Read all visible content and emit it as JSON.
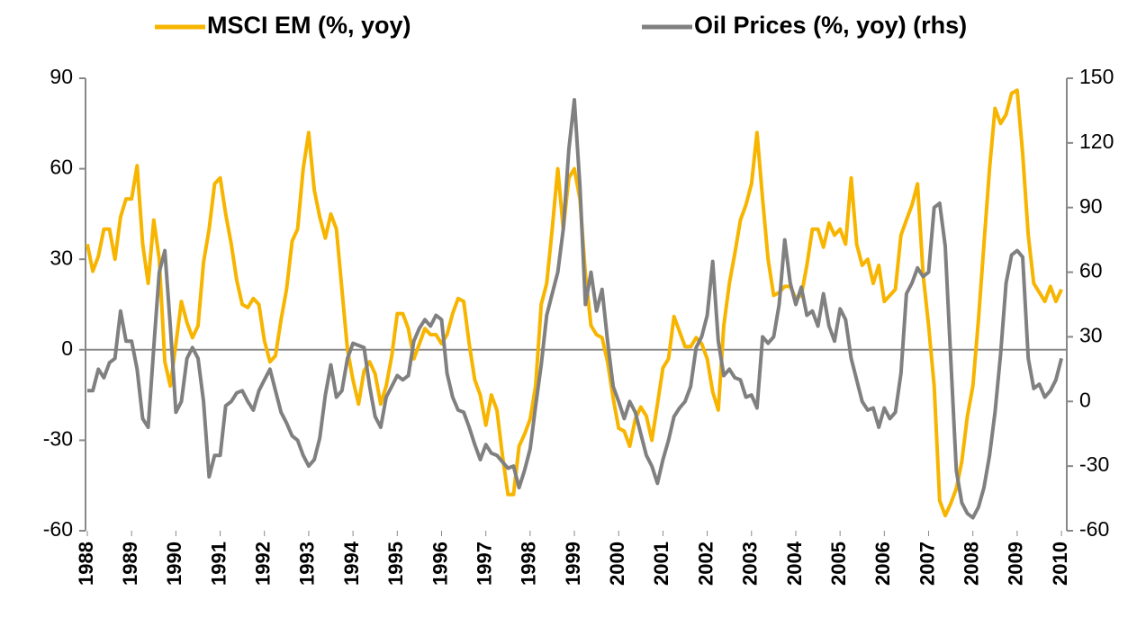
{
  "chart_data": {
    "type": "line",
    "x": [
      1988,
      1988.125,
      1988.25,
      1988.375,
      1988.5,
      1988.625,
      1988.75,
      1988.875,
      1989,
      1989.125,
      1989.25,
      1989.375,
      1989.5,
      1989.625,
      1989.75,
      1989.875,
      1990,
      1990.125,
      1990.25,
      1990.375,
      1990.5,
      1990.625,
      1990.75,
      1990.875,
      1991,
      1991.125,
      1991.25,
      1991.375,
      1991.5,
      1991.625,
      1991.75,
      1991.875,
      1992,
      1992.125,
      1992.25,
      1992.375,
      1992.5,
      1992.625,
      1992.75,
      1992.875,
      1993,
      1993.125,
      1993.25,
      1993.375,
      1993.5,
      1993.625,
      1993.75,
      1993.875,
      1994,
      1994.125,
      1994.25,
      1994.375,
      1994.5,
      1994.625,
      1994.75,
      1994.875,
      1995,
      1995.125,
      1995.25,
      1995.375,
      1995.5,
      1995.625,
      1995.75,
      1995.875,
      1996,
      1996.125,
      1996.25,
      1996.375,
      1996.5,
      1996.625,
      1996.75,
      1996.875,
      1997,
      1997.125,
      1997.25,
      1997.375,
      1997.5,
      1997.625,
      1997.75,
      1997.875,
      1998,
      1998.125,
      1998.25,
      1998.375,
      1998.5,
      1998.625,
      1998.75,
      1998.875,
      1999,
      1999.125,
      1999.25,
      1999.375,
      1999.5,
      1999.625,
      1999.75,
      1999.875,
      2000,
      2000.125,
      2000.25,
      2000.375,
      2000.5,
      2000.625,
      2000.75,
      2000.875,
      2001,
      2001.125,
      2001.25,
      2001.375,
      2001.5,
      2001.625,
      2001.75,
      2001.875,
      2002,
      2002.125,
      2002.25,
      2002.375,
      2002.5,
      2002.625,
      2002.75,
      2002.875,
      2003,
      2003.125,
      2003.25,
      2003.375,
      2003.5,
      2003.625,
      2003.75,
      2003.875,
      2004,
      2004.125,
      2004.25,
      2004.375,
      2004.5,
      2004.625,
      2004.75,
      2004.875,
      2005,
      2005.125,
      2005.25,
      2005.375,
      2005.5,
      2005.625,
      2005.75,
      2005.875,
      2006,
      2006.125,
      2006.25,
      2006.375,
      2006.5,
      2006.625,
      2006.75,
      2006.875,
      2007,
      2007.125,
      2007.25,
      2007.375,
      2007.5,
      2007.625,
      2007.75,
      2007.875,
      2008,
      2008.125,
      2008.25,
      2008.375,
      2008.5,
      2008.625,
      2008.75,
      2008.875,
      2009,
      2009.125,
      2009.25,
      2009.375,
      2009.5,
      2009.625,
      2009.75,
      2009.875,
      2010
    ],
    "series": [
      {
        "name": "MSCI EM (%, yoy)",
        "color": "#f7b500",
        "values": [
          35,
          26,
          31,
          40,
          40,
          30,
          44,
          50,
          50,
          61,
          35,
          22,
          43,
          30,
          -4,
          -12,
          2,
          16,
          9,
          4,
          8,
          29,
          40,
          55,
          57,
          45,
          35,
          23,
          15,
          14,
          17,
          15,
          3,
          -4,
          -2,
          10,
          20,
          36,
          40,
          60,
          72,
          53,
          44,
          37,
          45,
          40,
          20,
          0,
          -10,
          -18,
          -7,
          -4,
          -8,
          -18,
          -12,
          -2,
          12,
          12,
          7,
          -3,
          2,
          7,
          5,
          5,
          2,
          5,
          12,
          17,
          16,
          2,
          -10,
          -15,
          -25,
          -15,
          -20,
          -35,
          -48,
          -48,
          -32,
          -28,
          -23,
          -12,
          15,
          22,
          40,
          60,
          40,
          57,
          60,
          50,
          25,
          8,
          5,
          4,
          -4,
          -16,
          -26,
          -27,
          -32,
          -23,
          -19,
          -22,
          -30,
          -18,
          -6,
          -3,
          11,
          6,
          1,
          1,
          4,
          2,
          -3,
          -14,
          -20,
          8,
          22,
          32,
          43,
          48,
          55,
          72,
          50,
          30,
          18,
          19,
          21,
          21,
          17,
          18,
          28,
          40,
          40,
          34,
          42,
          38,
          40,
          35,
          57,
          35,
          28,
          30,
          22,
          28,
          16,
          18,
          20,
          38,
          43,
          48,
          55,
          25,
          8,
          -12,
          -50,
          -55,
          -51,
          -46,
          -37,
          -22,
          -12,
          10,
          35,
          60,
          80,
          75,
          78,
          85,
          86,
          65,
          38,
          22,
          19,
          16,
          21,
          16,
          20
        ]
      },
      {
        "name": "Oil Prices (%, yoy) (rhs)",
        "color": "#808080",
        "axis": "y2",
        "values": [
          5,
          5,
          15,
          11,
          18,
          20,
          42,
          28,
          28,
          15,
          -8,
          -12,
          25,
          60,
          70,
          35,
          -5,
          0,
          20,
          25,
          20,
          0,
          -35,
          -25,
          -25,
          -2,
          0,
          4,
          5,
          0,
          -4,
          5,
          10,
          15,
          5,
          -5,
          -10,
          -16,
          -18,
          -25,
          -30,
          -27,
          -17,
          3,
          17,
          2,
          5,
          20,
          27,
          26,
          25,
          7,
          -7,
          -12,
          2,
          7,
          12,
          10,
          12,
          28,
          34,
          38,
          35,
          40,
          38,
          13,
          2,
          -4,
          -5,
          -12,
          -20,
          -27,
          -20,
          -24,
          -25,
          -28,
          -31,
          -30,
          -40,
          -32,
          -22,
          -2,
          17,
          40,
          50,
          60,
          80,
          117,
          140,
          100,
          45,
          60,
          42,
          52,
          28,
          7,
          0,
          -8,
          0,
          -5,
          -15,
          -25,
          -30,
          -38,
          -27,
          -18,
          -7,
          -3,
          0,
          7,
          25,
          30,
          40,
          65,
          28,
          12,
          15,
          11,
          10,
          2,
          3,
          -3,
          30,
          27,
          30,
          45,
          75,
          55,
          45,
          53,
          40,
          42,
          35,
          50,
          35,
          28,
          43,
          38,
          20,
          10,
          0,
          -4,
          -3,
          -12,
          -3,
          -8,
          -5,
          13,
          50,
          55,
          62,
          58,
          60,
          90,
          92,
          72,
          20,
          -32,
          -47,
          -52,
          -54,
          -49,
          -40,
          -25,
          -5,
          22,
          55,
          68,
          70,
          67,
          20,
          6,
          8,
          2,
          5,
          10,
          20
        ]
      }
    ],
    "xlim": [
      1988,
      2010.1
    ],
    "xticks": [
      1988,
      1989,
      1990,
      1991,
      1992,
      1993,
      1994,
      1995,
      1996,
      1997,
      1998,
      1999,
      2000,
      2001,
      2002,
      2003,
      2004,
      2005,
      2006,
      2007,
      2008,
      2009,
      2010
    ],
    "ylim": [
      -60,
      90
    ],
    "yticks": [
      -60,
      -30,
      0,
      30,
      60,
      90
    ],
    "y2lim": [
      -60,
      150
    ],
    "y2ticks": [
      -60,
      -30,
      0,
      30,
      60,
      90,
      120,
      150
    ],
    "grid": false,
    "legend": "top"
  }
}
